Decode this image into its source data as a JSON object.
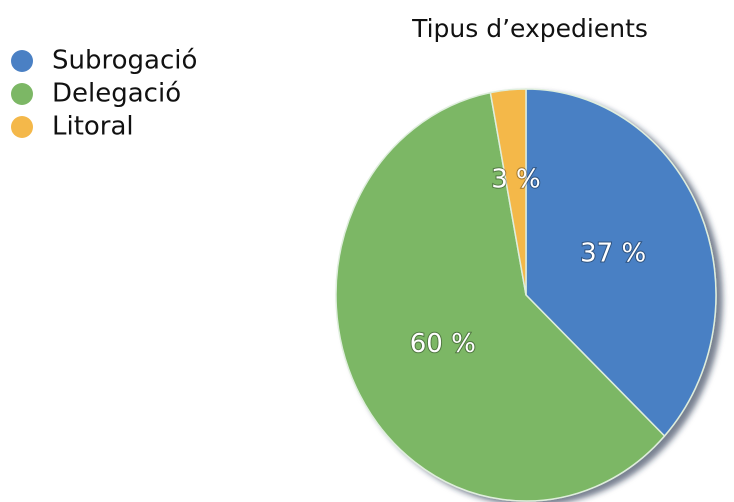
{
  "chart_data": {
    "type": "pie",
    "title": "Tipus d’expedients",
    "categories": [
      "Subrogació",
      "Delegació",
      "Litoral"
    ],
    "values": [
      37,
      60,
      3
    ],
    "value_labels": [
      "37 %",
      "60 %",
      "3 %"
    ],
    "colors": [
      "#4a80c4",
      "#7cb765",
      "#f4b84a"
    ],
    "legend": "top-left"
  }
}
